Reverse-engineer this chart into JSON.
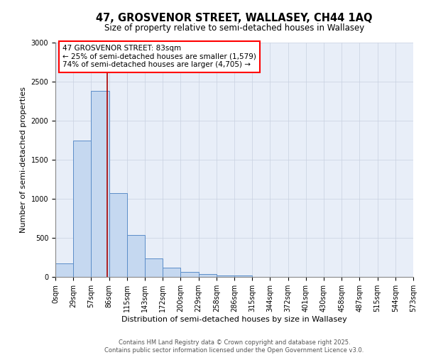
{
  "title_line1": "47, GROSVENOR STREET, WALLASEY, CH44 1AQ",
  "title_line2": "Size of property relative to semi-detached houses in Wallasey",
  "xlabel": "Distribution of semi-detached houses by size in Wallasey",
  "ylabel": "Number of semi-detached properties",
  "bar_values": [
    175,
    1750,
    2380,
    1070,
    540,
    235,
    115,
    65,
    35,
    20,
    20,
    0,
    0,
    0,
    0,
    0,
    0,
    0,
    0,
    0
  ],
  "bin_labels": [
    "0sqm",
    "29sqm",
    "57sqm",
    "86sqm",
    "115sqm",
    "143sqm",
    "172sqm",
    "200sqm",
    "229sqm",
    "258sqm",
    "286sqm",
    "315sqm",
    "344sqm",
    "372sqm",
    "401sqm",
    "430sqm",
    "458sqm",
    "487sqm",
    "515sqm",
    "544sqm",
    "573sqm"
  ],
  "bar_color": "#c5d8f0",
  "bar_edge_color": "#5b8dc8",
  "ylim": [
    0,
    3000
  ],
  "yticks": [
    0,
    500,
    1000,
    1500,
    2000,
    2500,
    3000
  ],
  "annotation_title": "47 GROSVENOR STREET: 83sqm",
  "annotation_line1": "← 25% of semi-detached houses are smaller (1,579)",
  "annotation_line2": "74% of semi-detached houses are larger (4,705) →",
  "footer_line1": "Contains HM Land Registry data © Crown copyright and database right 2025.",
  "footer_line2": "Contains public sector information licensed under the Open Government Licence v3.0.",
  "background_color": "#e8eef8",
  "plot_background": "#ffffff",
  "grid_color": "#c8d0e0",
  "vline_color": "#aa0000",
  "vline_x": 2.9,
  "title1_fontsize": 10.5,
  "title2_fontsize": 8.5,
  "ylabel_fontsize": 8,
  "xlabel_fontsize": 8,
  "tick_fontsize": 7,
  "annotation_fontsize": 7.5,
  "footer_fontsize": 6
}
